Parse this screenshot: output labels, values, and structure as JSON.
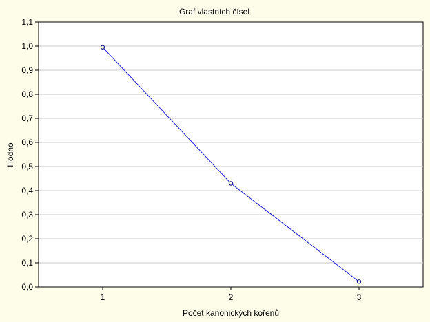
{
  "chart_data": {
    "type": "line",
    "title": "Graf vlastních čísel",
    "xlabel": "Počet kanonických kořenů",
    "ylabel": "Hodno",
    "x": [
      1,
      2,
      3
    ],
    "series": [
      {
        "values": [
          0.995,
          0.43,
          0.022
        ],
        "color": "#1f1fd6"
      }
    ],
    "xticks": [
      "1",
      "2",
      "3"
    ],
    "xlim": [
      0.5,
      3.5
    ],
    "ylim": [
      0.0,
      1.1
    ],
    "yticks": [
      "0,0",
      "0,1",
      "0,2",
      "0,3",
      "0,4",
      "0,5",
      "0,6",
      "0,7",
      "0,8",
      "0,9",
      "1,0",
      "1,1"
    ],
    "grid": true,
    "legend": "none",
    "colors": {
      "background": "#fdfde9",
      "plot_area": "#ffffff",
      "grid": "#c8c8c8",
      "line": "#1f1fd6"
    }
  }
}
